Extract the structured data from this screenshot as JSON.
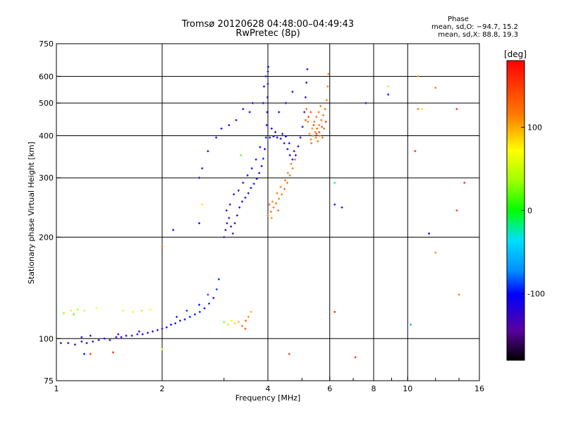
{
  "title": "Tromsø 20120628 04:48:00–04:49:43",
  "subtitle": "RwPretec (8p)",
  "phase_info": {
    "heading": "Phase",
    "line_o": "mean, sd,O: −94.7, 15.2",
    "line_x": "mean, sd,X:  88.8, 19.3"
  },
  "colorbar": {
    "title": "[deg]",
    "range": [
      -180,
      180
    ],
    "ticks": [
      {
        "value": 100,
        "label": "100"
      },
      {
        "value": 0,
        "label": "0"
      },
      {
        "value": -100,
        "label": "-100"
      }
    ]
  },
  "chart_data": {
    "type": "scatter",
    "xlabel": "Frequency [MHz]",
    "ylabel": "Stationary phase Virtual Height [km]",
    "x_scale": "log",
    "y_scale": "log",
    "xlim": [
      1,
      16
    ],
    "ylim": [
      75,
      750
    ],
    "x_ticks": [
      {
        "value": 1,
        "label": "1"
      },
      {
        "value": 2,
        "label": "2"
      },
      {
        "value": 4,
        "label": "4"
      },
      {
        "value": 6,
        "label": "6"
      },
      {
        "value": 8,
        "label": "8"
      },
      {
        "value": 10,
        "label": "10"
      },
      {
        "value": 16,
        "label": "16"
      }
    ],
    "y_ticks": [
      {
        "value": 75,
        "label": "75"
      },
      {
        "value": 100,
        "label": "100"
      },
      {
        "value": 200,
        "label": "200"
      },
      {
        "value": 300,
        "label": "300"
      },
      {
        "value": 400,
        "label": "400"
      },
      {
        "value": 500,
        "label": "500"
      },
      {
        "value": 600,
        "label": "600"
      },
      {
        "value": 750,
        "label": "750"
      }
    ],
    "x_gridlines": [
      2,
      4,
      6,
      8,
      10
    ],
    "y_gridlines": [
      100,
      200,
      300,
      400,
      500,
      600
    ],
    "grid": true,
    "series": [
      {
        "color_by": "phase_deg",
        "points": [
          [
            1.03,
            97,
            -115
          ],
          [
            1.08,
            97,
            -118
          ],
          [
            1.13,
            96,
            -112
          ],
          [
            1.18,
            98,
            -120
          ],
          [
            1.22,
            97,
            -110
          ],
          [
            1.27,
            98,
            -116
          ],
          [
            1.32,
            99,
            -108
          ],
          [
            1.37,
            100,
            -114
          ],
          [
            1.42,
            99,
            -122
          ],
          [
            1.48,
            101,
            -110
          ],
          [
            1.53,
            101,
            -117
          ],
          [
            1.58,
            102,
            -106
          ],
          [
            1.64,
            102,
            -112
          ],
          [
            1.7,
            103,
            -119
          ],
          [
            1.76,
            103,
            -110
          ],
          [
            1.82,
            104,
            -114
          ],
          [
            1.88,
            105,
            -108
          ],
          [
            1.94,
            106,
            -112
          ],
          [
            2.0,
            107,
            -104
          ],
          [
            2.06,
            108,
            -110
          ],
          [
            2.12,
            110,
            -98
          ],
          [
            2.18,
            111,
            -106
          ],
          [
            2.25,
            113,
            -100
          ],
          [
            2.32,
            114,
            -104
          ],
          [
            2.4,
            116,
            -96
          ],
          [
            2.48,
            118,
            -102
          ],
          [
            2.56,
            120,
            -92
          ],
          [
            2.64,
            123,
            -98
          ],
          [
            2.72,
            127,
            -94
          ],
          [
            2.8,
            132,
            -100
          ],
          [
            2.86,
            140,
            -88
          ],
          [
            2.9,
            150,
            -94
          ],
          [
            1.18,
            101,
            -112
          ],
          [
            1.25,
            102,
            -118
          ],
          [
            1.5,
            103,
            -110
          ],
          [
            1.72,
            105,
            -114
          ],
          [
            2.2,
            116,
            -96
          ],
          [
            2.35,
            121,
            -92
          ],
          [
            2.55,
            126,
            -100
          ],
          [
            2.7,
            135,
            -86
          ],
          [
            1.1,
            121,
            60
          ],
          [
            1.15,
            122,
            40
          ],
          [
            1.2,
            121,
            80
          ],
          [
            1.3,
            123,
            70
          ],
          [
            1.55,
            121,
            65
          ],
          [
            1.65,
            120,
            75
          ],
          [
            1.75,
            121,
            85
          ],
          [
            1.85,
            122,
            70
          ],
          [
            1.05,
            119,
            30
          ],
          [
            1.12,
            118,
            20
          ],
          [
            3.0,
            112,
            25
          ],
          [
            3.08,
            110,
            40
          ],
          [
            3.15,
            113,
            60
          ],
          [
            3.22,
            111,
            85
          ],
          [
            3.3,
            112,
            95
          ],
          [
            3.38,
            109,
            120
          ],
          [
            3.46,
            113,
            130
          ],
          [
            3.52,
            116,
            110
          ],
          [
            3.58,
            120,
            100
          ],
          [
            3.45,
            107,
            140
          ],
          [
            3.0,
            200,
            -128
          ],
          [
            3.03,
            210,
            -122
          ],
          [
            3.06,
            220,
            -135
          ],
          [
            3.1,
            228,
            -118
          ],
          [
            3.14,
            215,
            -130
          ],
          [
            3.18,
            205,
            -140
          ],
          [
            3.22,
            220,
            -125
          ],
          [
            3.27,
            232,
            -118
          ],
          [
            3.32,
            245,
            -112
          ],
          [
            3.38,
            255,
            -108
          ],
          [
            3.45,
            262,
            -104
          ],
          [
            3.52,
            270,
            -110
          ],
          [
            3.58,
            280,
            -100
          ],
          [
            3.65,
            288,
            -96
          ],
          [
            3.72,
            298,
            -104
          ],
          [
            3.78,
            310,
            -110
          ],
          [
            3.84,
            325,
            -102
          ],
          [
            3.88,
            342,
            -96
          ],
          [
            3.92,
            365,
            -104
          ],
          [
            3.95,
            395,
            -110
          ],
          [
            3.97,
            430,
            -106
          ],
          [
            3.98,
            470,
            -112
          ],
          [
            3.99,
            520,
            -108
          ],
          [
            4.0,
            570,
            -104
          ],
          [
            4.0,
            620,
            -110
          ],
          [
            4.01,
            640,
            -100
          ],
          [
            3.05,
            240,
            -132
          ],
          [
            3.12,
            250,
            -126
          ],
          [
            3.2,
            268,
            -120
          ],
          [
            3.3,
            275,
            -126
          ],
          [
            3.4,
            290,
            -120
          ],
          [
            3.5,
            305,
            -114
          ],
          [
            3.6,
            320,
            -108
          ],
          [
            3.7,
            340,
            -112
          ],
          [
            3.8,
            370,
            -106
          ],
          [
            2.55,
            300,
            -110
          ],
          [
            2.6,
            320,
            -116
          ],
          [
            2.7,
            360,
            -112
          ],
          [
            2.85,
            395,
            -108
          ],
          [
            2.95,
            420,
            -114
          ],
          [
            3.1,
            430,
            -104
          ],
          [
            3.25,
            445,
            -110
          ],
          [
            3.4,
            480,
            -108
          ],
          [
            3.55,
            470,
            -104
          ],
          [
            3.62,
            500,
            -110
          ],
          [
            4.05,
            395,
            -104
          ],
          [
            4.15,
            398,
            -110
          ],
          [
            4.25,
            395,
            -100
          ],
          [
            4.35,
            392,
            -108
          ],
          [
            4.45,
            380,
            -112
          ],
          [
            4.55,
            365,
            -104
          ],
          [
            4.62,
            350,
            -110
          ],
          [
            4.7,
            340,
            -100
          ],
          [
            4.8,
            350,
            -108
          ],
          [
            4.88,
            372,
            -104
          ],
          [
            4.95,
            395,
            -110
          ],
          [
            5.02,
            425,
            -106
          ],
          [
            5.08,
            470,
            -112
          ],
          [
            5.12,
            520,
            -104
          ],
          [
            5.15,
            575,
            -108
          ],
          [
            5.18,
            630,
            -100
          ],
          [
            4.1,
            420,
            -108
          ],
          [
            4.2,
            410,
            -102
          ],
          [
            4.4,
            405,
            -110
          ],
          [
            4.5,
            398,
            -104
          ],
          [
            4.6,
            380,
            -106
          ],
          [
            4.75,
            360,
            -110
          ],
          [
            4.3,
            470,
            -108
          ],
          [
            4.5,
            500,
            -104
          ],
          [
            4.7,
            540,
            -110
          ],
          [
            3.95,
            600,
            -110
          ],
          [
            3.9,
            560,
            -104
          ],
          [
            3.88,
            500,
            -108
          ],
          [
            4.0,
            232,
            120
          ],
          [
            4.08,
            238,
            125
          ],
          [
            4.15,
            245,
            118
          ],
          [
            4.22,
            252,
            122
          ],
          [
            4.3,
            260,
            115
          ],
          [
            4.38,
            268,
            120
          ],
          [
            4.46,
            278,
            125
          ],
          [
            4.54,
            290,
            118
          ],
          [
            4.62,
            305,
            122
          ],
          [
            4.7,
            320,
            115
          ],
          [
            4.78,
            340,
            120
          ],
          [
            4.04,
            250,
            128
          ],
          [
            4.12,
            255,
            112
          ],
          [
            4.25,
            270,
            122
          ],
          [
            4.35,
            282,
            118
          ],
          [
            4.48,
            295,
            125
          ],
          [
            4.56,
            310,
            115
          ],
          [
            4.66,
            330,
            120
          ],
          [
            4.1,
            228,
            110
          ],
          [
            4.28,
            240,
            125
          ],
          [
            5.3,
            390,
            118
          ],
          [
            5.38,
            400,
            125
          ],
          [
            5.45,
            410,
            120
          ],
          [
            5.52,
            420,
            128
          ],
          [
            5.6,
            430,
            115
          ],
          [
            5.68,
            445,
            122
          ],
          [
            5.75,
            460,
            118
          ],
          [
            5.82,
            480,
            125
          ],
          [
            5.88,
            510,
            120
          ],
          [
            5.92,
            560,
            118
          ],
          [
            5.95,
            610,
            122
          ],
          [
            5.35,
            420,
            110
          ],
          [
            5.42,
            440,
            120
          ],
          [
            5.5,
            455,
            125
          ],
          [
            5.58,
            470,
            118
          ],
          [
            5.65,
            490,
            122
          ],
          [
            5.72,
            395,
            128
          ],
          [
            5.25,
            405,
            115
          ],
          [
            5.2,
            440,
            122
          ],
          [
            5.15,
            480,
            118
          ],
          [
            5.32,
            380,
            125
          ],
          [
            5.48,
            395,
            120
          ],
          [
            5.55,
            385,
            118
          ],
          [
            5.62,
            400,
            125
          ],
          [
            5.78,
            420,
            120
          ],
          [
            5.12,
            445,
            140
          ],
          [
            5.22,
            455,
            150
          ],
          [
            5.3,
            470,
            135
          ],
          [
            5.4,
            430,
            145
          ],
          [
            5.5,
            405,
            160
          ],
          [
            5.6,
            410,
            150
          ],
          [
            5.7,
            425,
            140
          ],
          [
            5.85,
            440,
            155
          ],
          [
            8.8,
            530,
            -110
          ],
          [
            8.8,
            560,
            40
          ],
          [
            10.7,
            480,
            120
          ],
          [
            10.7,
            600,
            110
          ],
          [
            11.0,
            480,
            80
          ],
          [
            11.5,
            205,
            -100
          ],
          [
            12.0,
            180,
            110
          ],
          [
            12.0,
            555,
            120
          ],
          [
            13.8,
            480,
            160
          ],
          [
            13.8,
            240,
            150
          ],
          [
            14.0,
            135,
            120
          ],
          [
            10.2,
            110,
            -60
          ],
          [
            6.2,
            120,
            160
          ],
          [
            6.2,
            250,
            -110
          ],
          [
            6.5,
            245,
            -110
          ],
          [
            7.1,
            88,
            160
          ],
          [
            6.2,
            290,
            -20
          ],
          [
            4.6,
            90,
            150
          ],
          [
            2.0,
            93,
            50
          ],
          [
            1.25,
            90,
            160
          ],
          [
            1.45,
            91,
            160
          ],
          [
            1.2,
            90,
            -100
          ],
          [
            3.35,
            350,
            20
          ],
          [
            2.55,
            220,
            -105
          ],
          [
            2.15,
            210,
            -110
          ],
          [
            2.0,
            188,
            140
          ],
          [
            2.6,
            250,
            80
          ],
          [
            7.6,
            500,
            -110
          ],
          [
            10.5,
            360,
            160
          ],
          [
            14.5,
            290,
            160
          ]
        ]
      }
    ]
  }
}
